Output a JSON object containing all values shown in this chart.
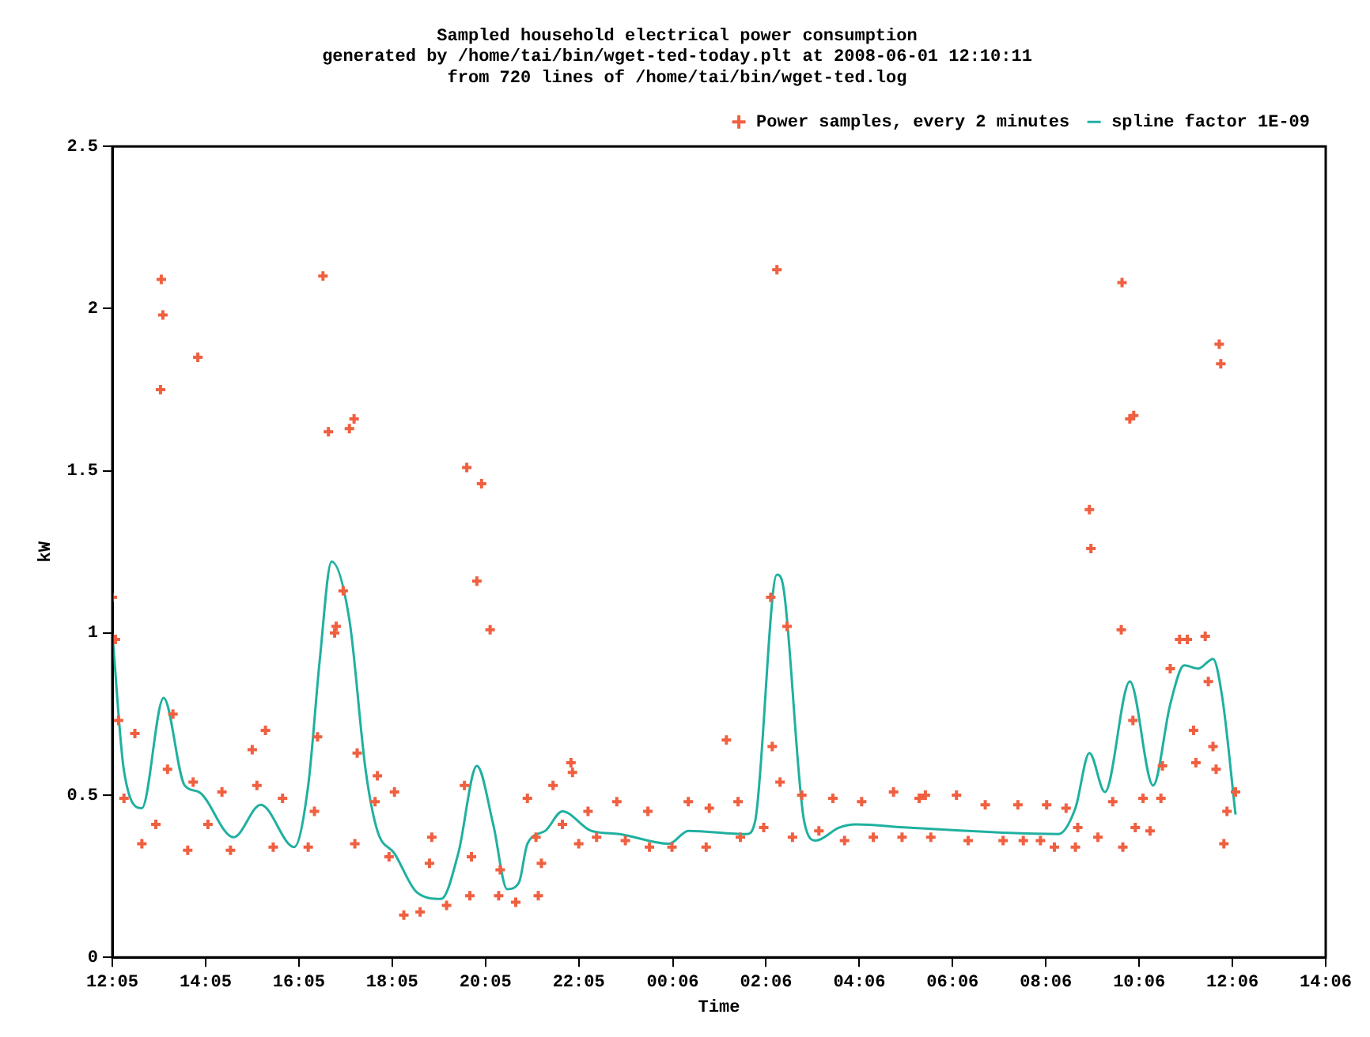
{
  "chart_data": {
    "type": "scatter",
    "title": "Sampled household electrical power consumption",
    "subtitle": "generated by /home/tai/bin/wget-ted-today.plt at 2008-06-01 12:10:11",
    "annotations": [
      "from 720 lines of /home/tai/bin/wget-ted.log"
    ],
    "xlabel": "Time",
    "ylabel": "kW",
    "xlim": [
      "2008-05-31T12:05",
      "2008-06-01T14:06"
    ],
    "xticks": [
      {
        "value": "2008-05-31T12:05",
        "label": "12:05"
      },
      {
        "value": "2008-05-31T14:05",
        "label": "14:05"
      },
      {
        "value": "2008-05-31T16:05",
        "label": "16:05"
      },
      {
        "value": "2008-05-31T18:05",
        "label": "18:05"
      },
      {
        "value": "2008-05-31T20:05",
        "label": "20:05"
      },
      {
        "value": "2008-05-31T22:05",
        "label": "22:05"
      },
      {
        "value": "2008-06-01T00:06",
        "label": "00:06"
      },
      {
        "value": "2008-06-01T02:06",
        "label": "02:06"
      },
      {
        "value": "2008-06-01T04:06",
        "label": "04:06"
      },
      {
        "value": "2008-06-01T06:06",
        "label": "06:06"
      },
      {
        "value": "2008-06-01T08:06",
        "label": "08:06"
      },
      {
        "value": "2008-06-01T10:06",
        "label": "10:06"
      },
      {
        "value": "2008-06-01T12:06",
        "label": "12:06"
      },
      {
        "value": "2008-06-01T14:06",
        "label": "14:06"
      }
    ],
    "ylim": [
      0,
      2.5
    ],
    "yticks": [
      0,
      0.5,
      1,
      1.5,
      2,
      2.5
    ],
    "grid": false,
    "legend": "top right",
    "series": [
      {
        "name": "Power samples, every 2 minutes",
        "marker": "cross",
        "color": "#f06040",
        "x": [
          "2008-05-31T12:05",
          "2008-05-31T12:09",
          "2008-05-31T13:08",
          "2008-05-31T13:10",
          "2008-05-31T13:07",
          "2008-05-31T13:55",
          "2008-05-31T16:36",
          "2008-05-31T16:43",
          "2008-05-31T17:10",
          "2008-05-31T17:16",
          "2008-05-31T17:02",
          "2008-05-31T16:51",
          "2008-05-31T16:53",
          "2008-05-31T19:41",
          "2008-05-31T20:00",
          "2008-05-31T19:54",
          "2008-05-31T20:11",
          "2008-05-31T12:13",
          "2008-05-31T12:34",
          "2008-05-31T12:20",
          "2008-05-31T12:43",
          "2008-05-31T13:01",
          "2008-05-31T13:16",
          "2008-05-31T13:23",
          "2008-05-31T13:42",
          "2008-05-31T13:49",
          "2008-05-31T14:08",
          "2008-05-31T14:26",
          "2008-05-31T14:37",
          "2008-05-31T15:05",
          "2008-05-31T15:22",
          "2008-05-31T15:11",
          "2008-05-31T15:32",
          "2008-05-31T15:44",
          "2008-05-31T16:17",
          "2008-05-31T16:25",
          "2008-05-31T16:29",
          "2008-05-31T17:20",
          "2008-05-31T17:17",
          "2008-05-31T17:46",
          "2008-05-31T17:43",
          "2008-05-31T18:08",
          "2008-05-31T18:01",
          "2008-05-31T18:20",
          "2008-05-31T18:41",
          "2008-05-31T18:56",
          "2008-05-31T18:53",
          "2008-05-31T19:15",
          "2008-05-31T19:45",
          "2008-05-31T19:47",
          "2008-05-31T19:38",
          "2008-05-31T20:22",
          "2008-05-31T20:24",
          "2008-05-31T20:44",
          "2008-06-01T02:20",
          "2008-06-01T02:12",
          "2008-06-01T02:33",
          "2008-06-01T01:15",
          "2008-06-01T02:14",
          "2008-06-01T02:24",
          "2008-05-31T21:13",
          "2008-05-31T21:17",
          "2008-05-31T21:10",
          "2008-05-31T20:59",
          "2008-05-31T21:32",
          "2008-05-31T21:55",
          "2008-05-31T21:57",
          "2008-05-31T21:44",
          "2008-05-31T22:05",
          "2008-05-31T22:17",
          "2008-05-31T22:28",
          "2008-05-31T22:54",
          "2008-05-31T23:05",
          "2008-05-31T23:34",
          "2008-05-31T23:36",
          "2008-06-01T00:05",
          "2008-06-01T00:26",
          "2008-06-01T00:53",
          "2008-06-01T00:49",
          "2008-06-01T01:30",
          "2008-06-01T01:33",
          "2008-06-01T02:03",
          "2008-06-01T02:40",
          "2008-06-01T02:52",
          "2008-06-01T03:14",
          "2008-06-01T03:32",
          "2008-06-01T03:47",
          "2008-06-01T04:09",
          "2008-06-01T04:24",
          "2008-06-01T04:50",
          "2008-06-01T05:01",
          "2008-06-01T05:23",
          "2008-06-01T05:31",
          "2008-06-01T05:38",
          "2008-06-01T06:11",
          "2008-06-01T06:26",
          "2008-06-01T06:48",
          "2008-06-01T07:11",
          "2008-06-01T07:30",
          "2008-06-01T07:37",
          "2008-06-01T08:07",
          "2008-06-01T07:59",
          "2008-06-01T08:17",
          "2008-06-01T08:32",
          "2008-06-01T08:44",
          "2008-06-01T08:47",
          "2008-06-01T09:44",
          "2008-06-01T09:54",
          "2008-06-01T09:59",
          "2008-06-01T09:02",
          "2008-06-01T09:04",
          "2008-06-01T09:43",
          "2008-06-01T09:32",
          "2008-06-01T09:13",
          "2008-06-01T09:45",
          "2008-06-01T09:58",
          "2008-06-01T10:01",
          "2008-06-01T10:20",
          "2008-06-01T10:11",
          "2008-06-01T10:34",
          "2008-06-01T10:36",
          "2008-06-01T10:46",
          "2008-06-01T10:58",
          "2008-06-01T11:08",
          "2008-06-01T11:16",
          "2008-06-01T11:19",
          "2008-06-01T11:31",
          "2008-06-01T11:35",
          "2008-06-01T11:41",
          "2008-06-01T11:49",
          "2008-06-01T11:51",
          "2008-06-01T11:45",
          "2008-06-01T11:59",
          "2008-06-01T11:55",
          "2008-06-01T12:10"
        ],
        "values": [
          1.11,
          0.98,
          2.09,
          1.98,
          1.75,
          1.85,
          2.1,
          1.62,
          1.63,
          1.66,
          1.13,
          1.0,
          1.02,
          1.51,
          1.46,
          1.16,
          1.01,
          0.73,
          0.69,
          0.49,
          0.35,
          0.41,
          0.58,
          0.75,
          0.33,
          0.54,
          0.41,
          0.51,
          0.33,
          0.64,
          0.7,
          0.53,
          0.34,
          0.49,
          0.34,
          0.45,
          0.68,
          0.63,
          0.35,
          0.56,
          0.48,
          0.51,
          0.31,
          0.13,
          0.14,
          0.37,
          0.29,
          0.16,
          0.19,
          0.31,
          0.53,
          0.19,
          0.27,
          0.17,
          2.12,
          1.11,
          1.02,
          0.67,
          0.65,
          0.54,
          0.19,
          0.29,
          0.37,
          0.49,
          0.53,
          0.6,
          0.57,
          0.41,
          0.35,
          0.45,
          0.37,
          0.48,
          0.36,
          0.45,
          0.34,
          0.34,
          0.48,
          0.46,
          0.34,
          0.48,
          0.37,
          0.4,
          0.37,
          0.5,
          0.39,
          0.49,
          0.36,
          0.48,
          0.37,
          0.51,
          0.37,
          0.49,
          0.5,
          0.37,
          0.5,
          0.36,
          0.47,
          0.36,
          0.47,
          0.36,
          0.47,
          0.36,
          0.34,
          0.46,
          0.34,
          0.4,
          2.08,
          1.66,
          1.67,
          1.38,
          1.26,
          1.01,
          0.48,
          0.37,
          0.34,
          0.73,
          0.4,
          0.39,
          0.49,
          0.49,
          0.59,
          0.89,
          0.98,
          0.98,
          0.7,
          0.6,
          0.99,
          0.85,
          0.65,
          1.89,
          1.83,
          0.58,
          0.45,
          0.35,
          0.51
        ]
      },
      {
        "name": "spline factor 1E-09",
        "type": "line",
        "marker": "none",
        "line_style": "solid",
        "color": "#20b0a0",
        "x": [
          "2008-05-31T12:05",
          "2008-05-31T12:20",
          "2008-05-31T12:43",
          "2008-05-31T13:11",
          "2008-05-31T13:38",
          "2008-05-31T13:56",
          "2008-05-31T14:41",
          "2008-05-31T15:16",
          "2008-05-31T15:59",
          "2008-05-31T16:17",
          "2008-05-31T16:32",
          "2008-05-31T16:47",
          "2008-05-31T17:10",
          "2008-05-31T17:31",
          "2008-05-31T17:46",
          "2008-05-31T18:08",
          "2008-05-31T18:37",
          "2008-05-31T19:08",
          "2008-05-31T19:30",
          "2008-05-31T19:54",
          "2008-05-31T20:15",
          "2008-05-31T20:33",
          "2008-05-31T20:48",
          "2008-05-31T20:59",
          "2008-05-31T21:22",
          "2008-05-31T21:44",
          "2008-05-31T22:21",
          "2008-05-31T22:57",
          "2008-06-01T00:01",
          "2008-06-01T00:26",
          "2008-06-01T01:41",
          "2008-06-01T01:52",
          "2008-06-01T02:20",
          "2008-06-01T02:29",
          "2008-06-01T02:55",
          "2008-06-01T03:10",
          "2008-06-01T03:40",
          "2008-06-01T04:02",
          "2008-06-01T05:08",
          "2008-06-01T08:22",
          "2008-06-01T08:44",
          "2008-06-01T09:02",
          "2008-06-01T09:22",
          "2008-06-01T09:54",
          "2008-06-01T10:24",
          "2008-06-01T10:46",
          "2008-06-01T11:04",
          "2008-06-01T11:22",
          "2008-06-01T11:41",
          "2008-06-01T11:53",
          "2008-06-01T12:10"
        ],
        "values": [
          1.0,
          0.575,
          0.46,
          0.8,
          0.53,
          0.51,
          0.37,
          0.47,
          0.34,
          0.53,
          0.92,
          1.22,
          1.04,
          0.575,
          0.39,
          0.32,
          0.2,
          0.18,
          0.32,
          0.59,
          0.41,
          0.21,
          0.23,
          0.35,
          0.39,
          0.45,
          0.39,
          0.38,
          0.35,
          0.39,
          0.38,
          0.42,
          1.18,
          1.13,
          0.42,
          0.36,
          0.4,
          0.41,
          0.4,
          0.38,
          0.46,
          0.63,
          0.51,
          0.85,
          0.53,
          0.78,
          0.9,
          0.89,
          0.92,
          0.8,
          0.44
        ]
      }
    ]
  }
}
